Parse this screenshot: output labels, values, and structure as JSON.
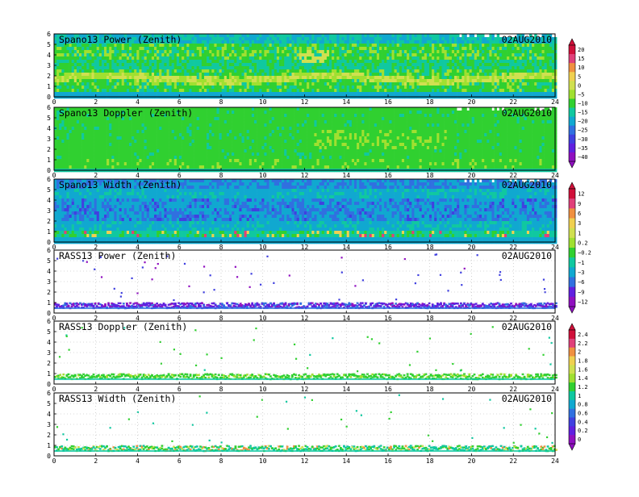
{
  "chart_data": [
    {
      "type": "heatmap",
      "title": "Spano13 Power (Zenith)",
      "date": "02AUG2010",
      "x_ticks": [
        0,
        2,
        4,
        6,
        8,
        10,
        12,
        14,
        16,
        18,
        20,
        22,
        24
      ],
      "y_ticks": [
        0,
        1,
        2,
        3,
        4,
        5,
        6
      ],
      "xlim": [
        0,
        24
      ],
      "ylim": [
        0,
        6
      ],
      "colorbar": {
        "group": 1,
        "labels": [
          "20",
          "15",
          "10",
          "5",
          "0",
          "−5",
          "−10",
          "−15",
          "−20",
          "−25",
          "−30",
          "−35",
          "−40"
        ]
      },
      "pattern": "power"
    },
    {
      "type": "heatmap",
      "title": "Spano13 Doppler (Zenith)",
      "date": "02AUG2010",
      "x_ticks": [
        0,
        2,
        4,
        6,
        8,
        10,
        12,
        14,
        16,
        18,
        20,
        22,
        24
      ],
      "y_ticks": [
        0,
        1,
        2,
        3,
        4,
        5,
        6
      ],
      "xlim": [
        0,
        24
      ],
      "ylim": [
        0,
        6
      ],
      "colorbar_group": 1,
      "pattern": "doppler"
    },
    {
      "type": "heatmap",
      "title": "Spano13 Width (Zenith)",
      "date": "02AUG2010",
      "x_ticks": [
        0,
        2,
        4,
        6,
        8,
        10,
        12,
        14,
        16,
        18,
        20,
        22,
        24
      ],
      "y_ticks": [
        0,
        1,
        2,
        3,
        4,
        5,
        6
      ],
      "xlim": [
        0,
        24
      ],
      "ylim": [
        0,
        6
      ],
      "colorbar": {
        "group": 2,
        "labels": [
          "12",
          "9",
          "6",
          "3",
          "1",
          "0.2",
          "−0.2",
          "−1",
          "−3",
          "−6",
          "−9",
          "−12"
        ]
      },
      "pattern": "width"
    },
    {
      "type": "heatmap",
      "title": "RASS13 Power (Zenith)",
      "date": "02AUG2010",
      "x_ticks": [
        0,
        2,
        4,
        6,
        8,
        10,
        12,
        14,
        16,
        18,
        20,
        22,
        24
      ],
      "y_ticks": [
        0,
        1,
        2,
        3,
        4,
        5,
        6
      ],
      "xlim": [
        0,
        24
      ],
      "ylim": [
        0,
        6
      ],
      "colorbar_group": 2,
      "pattern": "rass_power"
    },
    {
      "type": "heatmap",
      "title": "RASS13 Doppler (Zenith)",
      "date": "02AUG2010",
      "x_ticks": [
        0,
        2,
        4,
        6,
        8,
        10,
        12,
        14,
        16,
        18,
        20,
        22,
        24
      ],
      "y_ticks": [
        0,
        1,
        2,
        3,
        4,
        5,
        6
      ],
      "xlim": [
        0,
        24
      ],
      "ylim": [
        0,
        6
      ],
      "colorbar": {
        "group": 3,
        "labels": [
          "2.4",
          "2.2",
          "2",
          "1.8",
          "1.6",
          "1.4",
          "1.2",
          "1",
          "0.8",
          "0.6",
          "0.4",
          "0.2",
          "0"
        ]
      },
      "pattern": "rass_doppler"
    },
    {
      "type": "heatmap",
      "title": "RASS13 Width (Zenith)",
      "date": "02AUG2010",
      "x_ticks": [
        0,
        2,
        4,
        6,
        8,
        10,
        12,
        14,
        16,
        18,
        20,
        22,
        24
      ],
      "y_ticks": [
        0,
        1,
        2,
        3,
        4,
        5,
        6
      ],
      "xlim": [
        0,
        24
      ],
      "ylim": [
        0,
        6
      ],
      "colorbar_group": 3,
      "pattern": "rass_width"
    }
  ],
  "colors": {
    "background": "#ffffff",
    "axis": "#000000",
    "grid": "#b4b4b4",
    "scale1": [
      "#d0103a",
      "#e0407a",
      "#f09040",
      "#f0d050",
      "#d0e050",
      "#a0e030",
      "#30d030",
      "#10c8a0",
      "#10a8d0",
      "#3070e0",
      "#4040e0",
      "#6020e0",
      "#9010c0"
    ],
    "scale2": [
      "#d0103a",
      "#e0407a",
      "#f09040",
      "#f0d050",
      "#d0e050",
      "#a0e030",
      "#30d030",
      "#10c8a0",
      "#10a8d0",
      "#3070e0",
      "#6020e0",
      "#9010c0"
    ],
    "scale3": [
      "#d0103a",
      "#e0407a",
      "#f09040",
      "#f0d050",
      "#d0e050",
      "#a0e030",
      "#30d030",
      "#10c8a0",
      "#10a8d0",
      "#3070e0",
      "#4040e0",
      "#6020e0",
      "#9010c0"
    ]
  }
}
